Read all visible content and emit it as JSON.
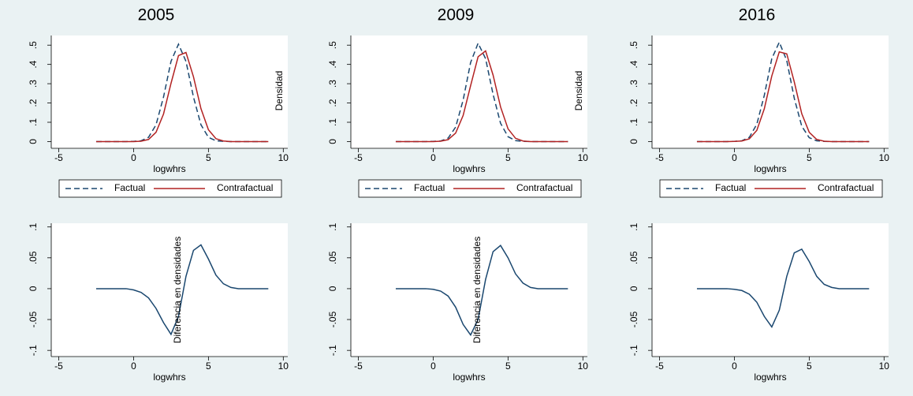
{
  "chart_data": [
    {
      "type": "line",
      "title": "2005",
      "xlabel": "logwhrs",
      "ylabel": "Densidad",
      "legend": "bottom",
      "x": [
        -2.5,
        -2,
        -1.5,
        -1,
        -0.5,
        0,
        0.5,
        1,
        1.5,
        2,
        2.5,
        3,
        3.5,
        4,
        4.5,
        5,
        5.5,
        6,
        6.5,
        7,
        7.5,
        8,
        8.5,
        9
      ],
      "series": [
        {
          "name": "Factual",
          "color": "#1a476f",
          "linestyle": "dashed",
          "values": [
            0,
            0,
            0,
            0,
            0,
            0.001,
            0.004,
            0.022,
            0.087,
            0.231,
            0.416,
            0.505,
            0.416,
            0.231,
            0.087,
            0.022,
            0.004,
            0.001,
            0,
            0,
            0,
            0,
            0,
            0
          ]
        },
        {
          "name": "Contrafactual",
          "color": "#b22222",
          "linestyle": "solid",
          "values": [
            0,
            0,
            0,
            0,
            0,
            0,
            0.002,
            0.011,
            0.048,
            0.143,
            0.302,
            0.446,
            0.462,
            0.336,
            0.171,
            0.061,
            0.015,
            0.003,
            0,
            0,
            0,
            0,
            0,
            0
          ]
        }
      ],
      "xlim": [
        -5.5,
        10.3
      ],
      "xticks": [
        -5,
        0,
        5,
        10
      ],
      "ylim": [
        -0.035,
        0.55
      ],
      "yticks": [
        0,
        {
          "value": 0.1,
          "label": ".1"
        },
        {
          "value": 0.2,
          "label": ".2"
        },
        {
          "value": 0.3,
          "label": ".3"
        },
        {
          "value": 0.4,
          "label": ".4"
        },
        {
          "value": 0.5,
          "label": ".5"
        }
      ]
    },
    {
      "type": "line",
      "title": "2009",
      "xlabel": "logwhrs",
      "ylabel": "Densidad",
      "legend": "bottom",
      "x": [
        -2.5,
        -2,
        -1.5,
        -1,
        -0.5,
        0,
        0.5,
        1,
        1.5,
        2,
        2.5,
        3,
        3.5,
        4,
        4.5,
        5,
        5.5,
        6,
        6.5,
        7,
        7.5,
        8,
        8.5,
        9
      ],
      "series": [
        {
          "name": "Factual",
          "color": "#1a476f",
          "linestyle": "dashed",
          "values": [
            0,
            0,
            0,
            0,
            0,
            0.001,
            0.003,
            0.018,
            0.075,
            0.215,
            0.41,
            0.51,
            0.43,
            0.245,
            0.095,
            0.025,
            0.005,
            0.001,
            0,
            0,
            0,
            0,
            0,
            0
          ]
        },
        {
          "name": "Contrafactual",
          "color": "#b22222",
          "linestyle": "solid",
          "values": [
            0,
            0,
            0,
            0,
            0,
            0,
            0.002,
            0.01,
            0.044,
            0.135,
            0.29,
            0.44,
            0.47,
            0.345,
            0.18,
            0.066,
            0.017,
            0.003,
            0,
            0,
            0,
            0,
            0,
            0
          ]
        }
      ],
      "xlim": [
        -5.5,
        10.3
      ],
      "xticks": [
        -5,
        0,
        5,
        10
      ],
      "ylim": [
        -0.035,
        0.55
      ],
      "yticks": [
        0,
        {
          "value": 0.1,
          "label": ".1"
        },
        {
          "value": 0.2,
          "label": ".2"
        },
        {
          "value": 0.3,
          "label": ".3"
        },
        {
          "value": 0.4,
          "label": ".4"
        },
        {
          "value": 0.5,
          "label": ".5"
        }
      ]
    },
    {
      "type": "line",
      "title": "2016",
      "xlabel": "logwhrs",
      "legend": "bottom",
      "x": [
        -2.5,
        -2,
        -1.5,
        -1,
        -0.5,
        0,
        0.5,
        1,
        1.5,
        2,
        2.5,
        3,
        3.5,
        4,
        4.5,
        5,
        5.5,
        6,
        6.5,
        7,
        7.5,
        8,
        8.5,
        9
      ],
      "series": [
        {
          "name": "Factual",
          "color": "#1a476f",
          "linestyle": "dashed",
          "values": [
            0,
            0,
            0,
            0,
            0,
            0.001,
            0.004,
            0.022,
            0.09,
            0.24,
            0.43,
            0.515,
            0.42,
            0.225,
            0.08,
            0.02,
            0.004,
            0.001,
            0,
            0,
            0,
            0,
            0,
            0
          ]
        },
        {
          "name": "Contrafactual",
          "color": "#b22222",
          "linestyle": "solid",
          "values": [
            0,
            0,
            0,
            0,
            0,
            0.001,
            0.003,
            0.014,
            0.058,
            0.17,
            0.34,
            0.465,
            0.455,
            0.31,
            0.145,
            0.048,
            0.011,
            0.002,
            0,
            0,
            0,
            0,
            0,
            0
          ]
        }
      ],
      "xlim": [
        -5.5,
        10.3
      ],
      "xticks": [
        -5,
        0,
        5,
        10
      ],
      "ylim": [
        -0.035,
        0.55
      ],
      "yticks": [
        0,
        {
          "value": 0.1,
          "label": ".1"
        },
        {
          "value": 0.2,
          "label": ".2"
        },
        {
          "value": 0.3,
          "label": ".3"
        },
        {
          "value": 0.4,
          "label": ".4"
        },
        {
          "value": 0.5,
          "label": ".5"
        }
      ]
    },
    {
      "type": "line",
      "xlabel": "logwhrs",
      "ylabel": "Diferencia en densidades",
      "x": [
        -2.5,
        -2,
        -1.5,
        -1,
        -0.5,
        0,
        0.5,
        1,
        1.5,
        2,
        2.5,
        3,
        3.5,
        4,
        4.5,
        5,
        5.5,
        6,
        6.5,
        7,
        7.5,
        8,
        8.5,
        9
      ],
      "series": [
        {
          "color": "#1a476f",
          "linestyle": "solid",
          "values": [
            0,
            0,
            0,
            0,
            0,
            -0.002,
            -0.006,
            -0.015,
            -0.032,
            -0.055,
            -0.074,
            -0.045,
            0.02,
            0.062,
            0.071,
            0.048,
            0.022,
            0.008,
            0.002,
            0,
            0,
            0,
            0,
            0
          ]
        }
      ],
      "xlim": [
        -5.5,
        10.3
      ],
      "xticks": [
        -5,
        0,
        5,
        10
      ],
      "ylim": [
        -0.11,
        0.106
      ],
      "yticks": [
        {
          "value": -0.1,
          "label": "-.1"
        },
        {
          "value": -0.05,
          "label": "-.05"
        },
        0,
        {
          "value": 0.05,
          "label": ".05"
        },
        {
          "value": 0.1,
          "label": ".1"
        }
      ]
    },
    {
      "type": "line",
      "xlabel": "logwhrs",
      "ylabel": "Diferencia en densidades",
      "x": [
        -2.5,
        -2,
        -1.5,
        -1,
        -0.5,
        0,
        0.5,
        1,
        1.5,
        2,
        2.5,
        3,
        3.5,
        4,
        4.5,
        5,
        5.5,
        6,
        6.5,
        7,
        7.5,
        8,
        8.5,
        9
      ],
      "series": [
        {
          "color": "#1a476f",
          "linestyle": "solid",
          "values": [
            0,
            0,
            0,
            0,
            0,
            -0.001,
            -0.004,
            -0.012,
            -0.03,
            -0.058,
            -0.075,
            -0.05,
            0.015,
            0.06,
            0.07,
            0.05,
            0.024,
            0.009,
            0.002,
            0,
            0,
            0,
            0,
            0
          ]
        }
      ],
      "xlim": [
        -5.5,
        10.3
      ],
      "xticks": [
        -5,
        0,
        5,
        10
      ],
      "ylim": [
        -0.11,
        0.106
      ],
      "yticks": [
        {
          "value": -0.1,
          "label": "-.1"
        },
        {
          "value": -0.05,
          "label": "-.05"
        },
        0,
        {
          "value": 0.05,
          "label": ".05"
        },
        {
          "value": 0.1,
          "label": ".1"
        }
      ]
    },
    {
      "type": "line",
      "xlabel": "logwhrs",
      "x": [
        -2.5,
        -2,
        -1.5,
        -1,
        -0.5,
        0,
        0.5,
        1,
        1.5,
        2,
        2.5,
        3,
        3.5,
        4,
        4.5,
        5,
        5.5,
        6,
        6.5,
        7,
        7.5,
        8,
        8.5,
        9
      ],
      "series": [
        {
          "color": "#1a476f",
          "linestyle": "solid",
          "values": [
            0,
            0,
            0,
            0,
            0,
            -0.001,
            -0.003,
            -0.009,
            -0.022,
            -0.045,
            -0.062,
            -0.035,
            0.02,
            0.058,
            0.064,
            0.044,
            0.02,
            0.007,
            0.002,
            0,
            0,
            0,
            0,
            0
          ]
        }
      ],
      "xlim": [
        -5.5,
        10.3
      ],
      "xticks": [
        -5,
        0,
        5,
        10
      ],
      "ylim": [
        -0.11,
        0.106
      ],
      "yticks": [
        {
          "value": -0.1,
          "label": "-.1"
        },
        {
          "value": -0.05,
          "label": "-.05"
        },
        0,
        {
          "value": 0.05,
          "label": ".05"
        },
        {
          "value": 0.1,
          "label": ".1"
        }
      ]
    }
  ]
}
